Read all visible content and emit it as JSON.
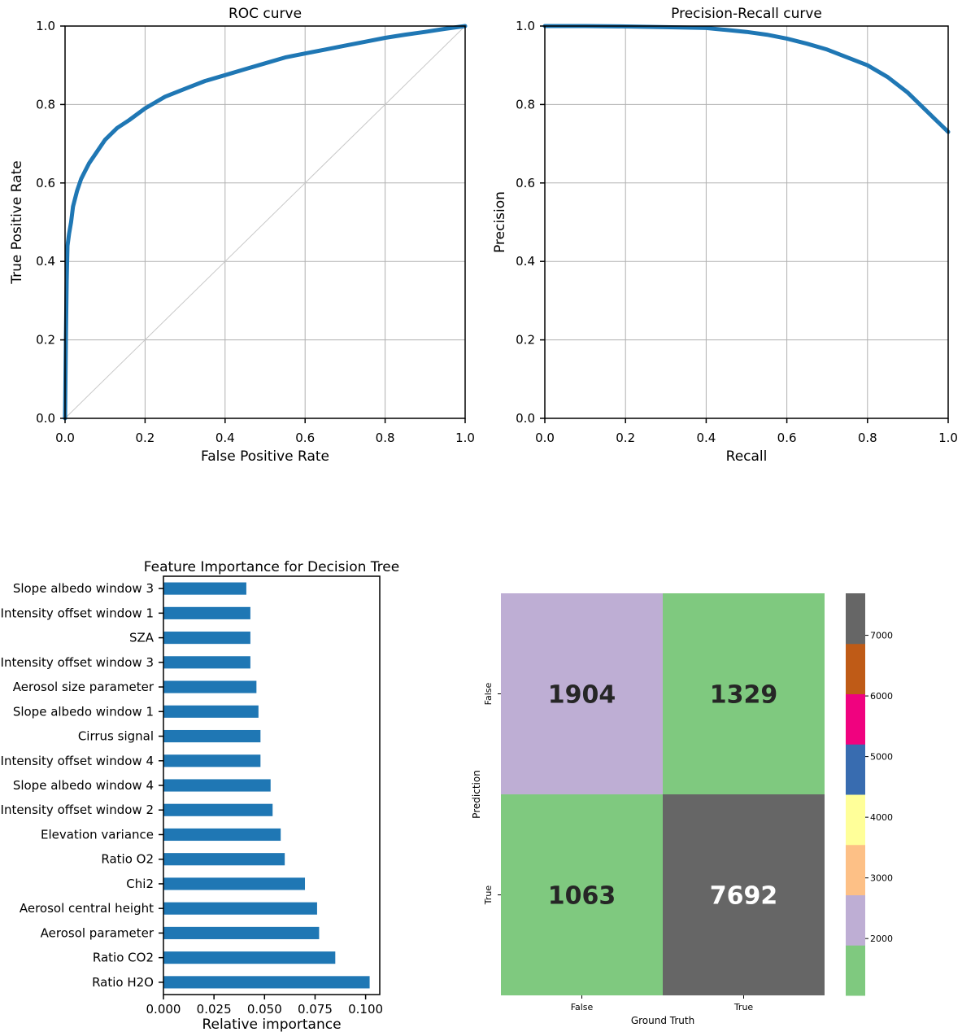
{
  "chart_data": [
    {
      "type": "line",
      "title": "ROC curve",
      "xlabel": "False Positive Rate",
      "ylabel": "True Positive Rate",
      "xlim": [
        0,
        1
      ],
      "ylim": [
        0,
        1
      ],
      "xticks": [
        "0.0",
        "0.2",
        "0.4",
        "0.6",
        "0.8",
        "1.0"
      ],
      "yticks": [
        "0.0",
        "0.2",
        "0.4",
        "0.6",
        "0.8",
        "1.0"
      ],
      "grid": true,
      "series": [
        {
          "color": "#1f77b4",
          "x": [
            0.0,
            0.002,
            0.004,
            0.006,
            0.01,
            0.015,
            0.02,
            0.03,
            0.04,
            0.05,
            0.06,
            0.08,
            0.1,
            0.13,
            0.16,
            0.2,
            0.25,
            0.3,
            0.35,
            0.4,
            0.45,
            0.5,
            0.55,
            0.6,
            0.65,
            0.7,
            0.75,
            0.8,
            0.85,
            0.9,
            0.95,
            1.0
          ],
          "y": [
            0.0,
            0.2,
            0.35,
            0.44,
            0.47,
            0.5,
            0.54,
            0.58,
            0.61,
            0.63,
            0.65,
            0.68,
            0.71,
            0.74,
            0.76,
            0.79,
            0.82,
            0.84,
            0.86,
            0.875,
            0.89,
            0.905,
            0.92,
            0.93,
            0.94,
            0.95,
            0.96,
            0.97,
            0.978,
            0.985,
            0.993,
            1.0
          ]
        },
        {
          "color": "#c8c8c8",
          "x": [
            0,
            1
          ],
          "y": [
            0,
            1
          ]
        }
      ]
    },
    {
      "type": "line",
      "title": "Precision-Recall curve",
      "xlabel": "Recall",
      "ylabel": "Precision",
      "xlim": [
        0,
        1
      ],
      "ylim": [
        0,
        1
      ],
      "xticks": [
        "0.0",
        "0.2",
        "0.4",
        "0.6",
        "0.8",
        "1.0"
      ],
      "yticks": [
        "0.0",
        "0.2",
        "0.4",
        "0.6",
        "0.8",
        "1.0"
      ],
      "grid": true,
      "series": [
        {
          "color": "#1f77b4",
          "x": [
            0.0,
            0.1,
            0.2,
            0.3,
            0.4,
            0.45,
            0.5,
            0.55,
            0.6,
            0.65,
            0.7,
            0.75,
            0.8,
            0.85,
            0.9,
            0.93,
            0.96,
            0.98,
            1.0
          ],
          "y": [
            1.0,
            1.0,
            0.999,
            0.997,
            0.995,
            0.99,
            0.985,
            0.978,
            0.968,
            0.955,
            0.94,
            0.92,
            0.9,
            0.87,
            0.83,
            0.8,
            0.77,
            0.75,
            0.73
          ]
        }
      ]
    },
    {
      "type": "bar",
      "orientation": "horizontal",
      "title": "Feature Importance for Decision Tree",
      "xlabel": "Relative importance",
      "ylabel": "",
      "xlim": [
        0,
        0.107
      ],
      "xticks": [
        "0.000",
        "0.025",
        "0.050",
        "0.075",
        "0.100"
      ],
      "color": "#1f77b4",
      "categories": [
        "Slope albedo window 3",
        "Intensity offset window 1",
        "SZA",
        "Intensity offset window 3",
        "Aerosol size parameter",
        "Slope albedo window 1",
        "Cirrus signal",
        "Intensity offset window 4",
        "Slope albedo window 4",
        "Intensity offset window 2",
        "Elevation variance",
        "Ratio O2",
        "Chi2",
        "Aerosol central height",
        "Aerosol parameter",
        "Ratio CO2",
        "Ratio H2O"
      ],
      "values": [
        0.041,
        0.043,
        0.043,
        0.043,
        0.046,
        0.047,
        0.048,
        0.048,
        0.053,
        0.054,
        0.058,
        0.06,
        0.07,
        0.076,
        0.077,
        0.085,
        0.102
      ]
    },
    {
      "type": "heatmap",
      "xlabel": "Ground Truth",
      "ylabel": "Prediction",
      "x_categories": [
        "False",
        "True"
      ],
      "y_categories": [
        "False",
        "True"
      ],
      "values": [
        [
          1904,
          1329
        ],
        [
          1063,
          7692
        ]
      ],
      "colorbar": {
        "min": 1063,
        "max": 7692,
        "ticks": [
          "2000",
          "3000",
          "4000",
          "5000",
          "6000",
          "7000"
        ],
        "colors": [
          "#7fc97f",
          "#beaed4",
          "#fdc086",
          "#ffff99",
          "#386cb0",
          "#f0027f",
          "#bf5b17",
          "#666666"
        ]
      }
    }
  ]
}
